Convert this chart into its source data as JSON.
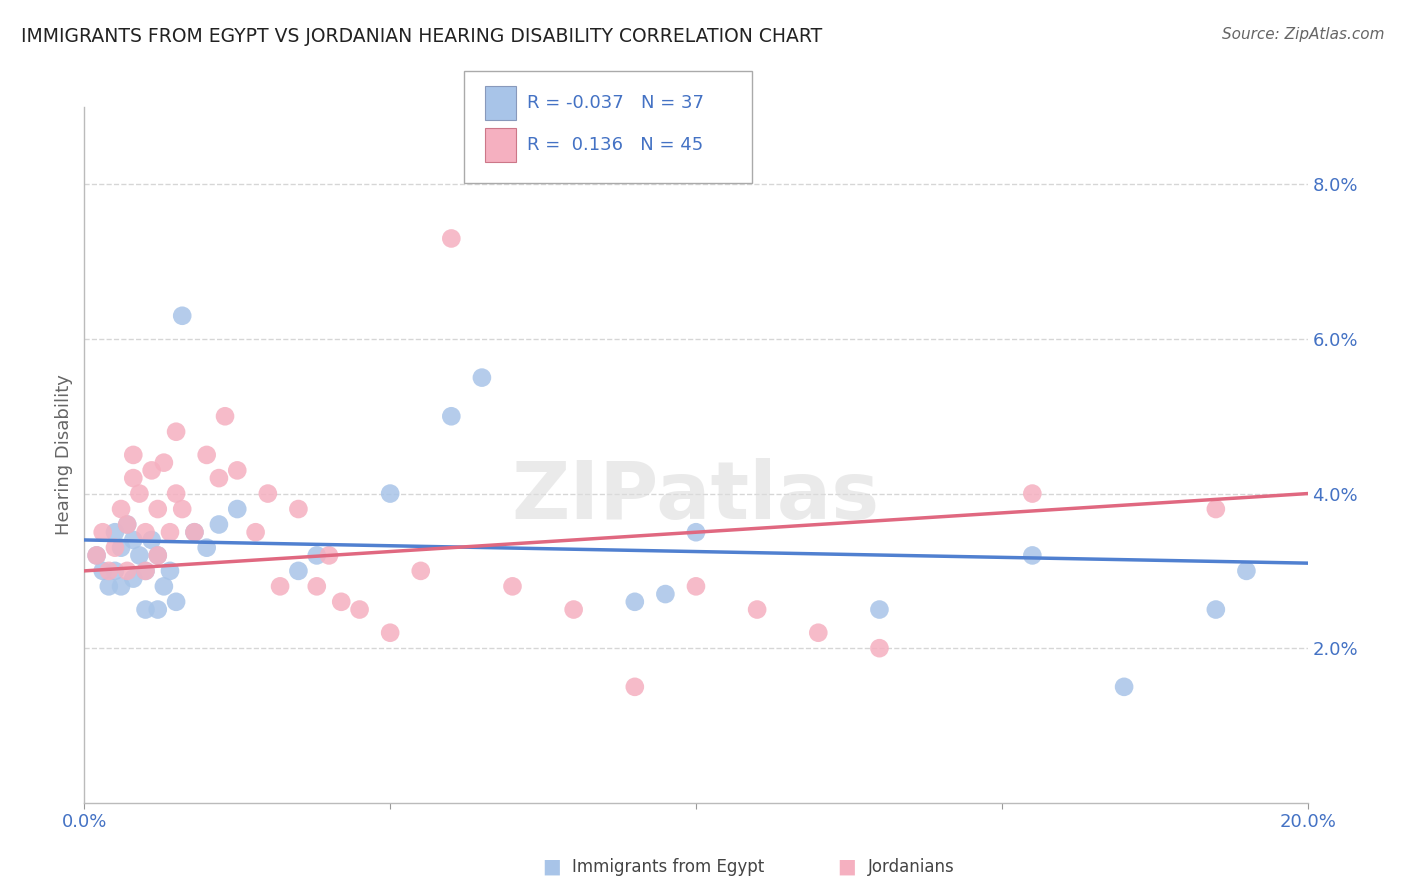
{
  "title": "IMMIGRANTS FROM EGYPT VS JORDANIAN HEARING DISABILITY CORRELATION CHART",
  "source": "Source: ZipAtlas.com",
  "ylabel": "Hearing Disability",
  "watermark": "ZIPatlas",
  "xlim": [
    0.0,
    0.2
  ],
  "ylim": [
    0.0,
    0.09
  ],
  "blue_R": "-0.037",
  "blue_N": "37",
  "pink_R": "0.136",
  "pink_N": "45",
  "blue_color": "#a8c4e8",
  "pink_color": "#f5b0c0",
  "blue_line_color": "#5080d0",
  "pink_line_color": "#e06880",
  "grid_color": "#cccccc",
  "blue_scatter_x": [
    0.002,
    0.003,
    0.004,
    0.005,
    0.005,
    0.006,
    0.006,
    0.007,
    0.008,
    0.008,
    0.009,
    0.01,
    0.01,
    0.011,
    0.012,
    0.012,
    0.013,
    0.014,
    0.015,
    0.016,
    0.018,
    0.02,
    0.022,
    0.025,
    0.035,
    0.038,
    0.05,
    0.06,
    0.065,
    0.09,
    0.095,
    0.1,
    0.13,
    0.155,
    0.17,
    0.185,
    0.19
  ],
  "blue_scatter_y": [
    0.032,
    0.03,
    0.028,
    0.035,
    0.03,
    0.033,
    0.028,
    0.036,
    0.034,
    0.029,
    0.032,
    0.03,
    0.025,
    0.034,
    0.032,
    0.025,
    0.028,
    0.03,
    0.026,
    0.063,
    0.035,
    0.033,
    0.036,
    0.038,
    0.03,
    0.032,
    0.04,
    0.05,
    0.055,
    0.026,
    0.027,
    0.035,
    0.025,
    0.032,
    0.015,
    0.025,
    0.03
  ],
  "pink_scatter_x": [
    0.002,
    0.003,
    0.004,
    0.005,
    0.006,
    0.007,
    0.007,
    0.008,
    0.008,
    0.009,
    0.01,
    0.01,
    0.011,
    0.012,
    0.012,
    0.013,
    0.014,
    0.015,
    0.015,
    0.016,
    0.018,
    0.02,
    0.022,
    0.023,
    0.025,
    0.028,
    0.03,
    0.032,
    0.035,
    0.038,
    0.04,
    0.042,
    0.045,
    0.05,
    0.055,
    0.06,
    0.07,
    0.08,
    0.09,
    0.1,
    0.11,
    0.12,
    0.13,
    0.155,
    0.185
  ],
  "pink_scatter_y": [
    0.032,
    0.035,
    0.03,
    0.033,
    0.038,
    0.036,
    0.03,
    0.045,
    0.042,
    0.04,
    0.035,
    0.03,
    0.043,
    0.038,
    0.032,
    0.044,
    0.035,
    0.048,
    0.04,
    0.038,
    0.035,
    0.045,
    0.042,
    0.05,
    0.043,
    0.035,
    0.04,
    0.028,
    0.038,
    0.028,
    0.032,
    0.026,
    0.025,
    0.022,
    0.03,
    0.073,
    0.028,
    0.025,
    0.015,
    0.028,
    0.025,
    0.022,
    0.02,
    0.04,
    0.038
  ],
  "blue_line_x0": 0.0,
  "blue_line_y0": 0.034,
  "blue_line_x1": 0.2,
  "blue_line_y1": 0.031,
  "pink_line_x0": 0.0,
  "pink_line_y0": 0.03,
  "pink_line_x1": 0.2,
  "pink_line_y1": 0.04
}
